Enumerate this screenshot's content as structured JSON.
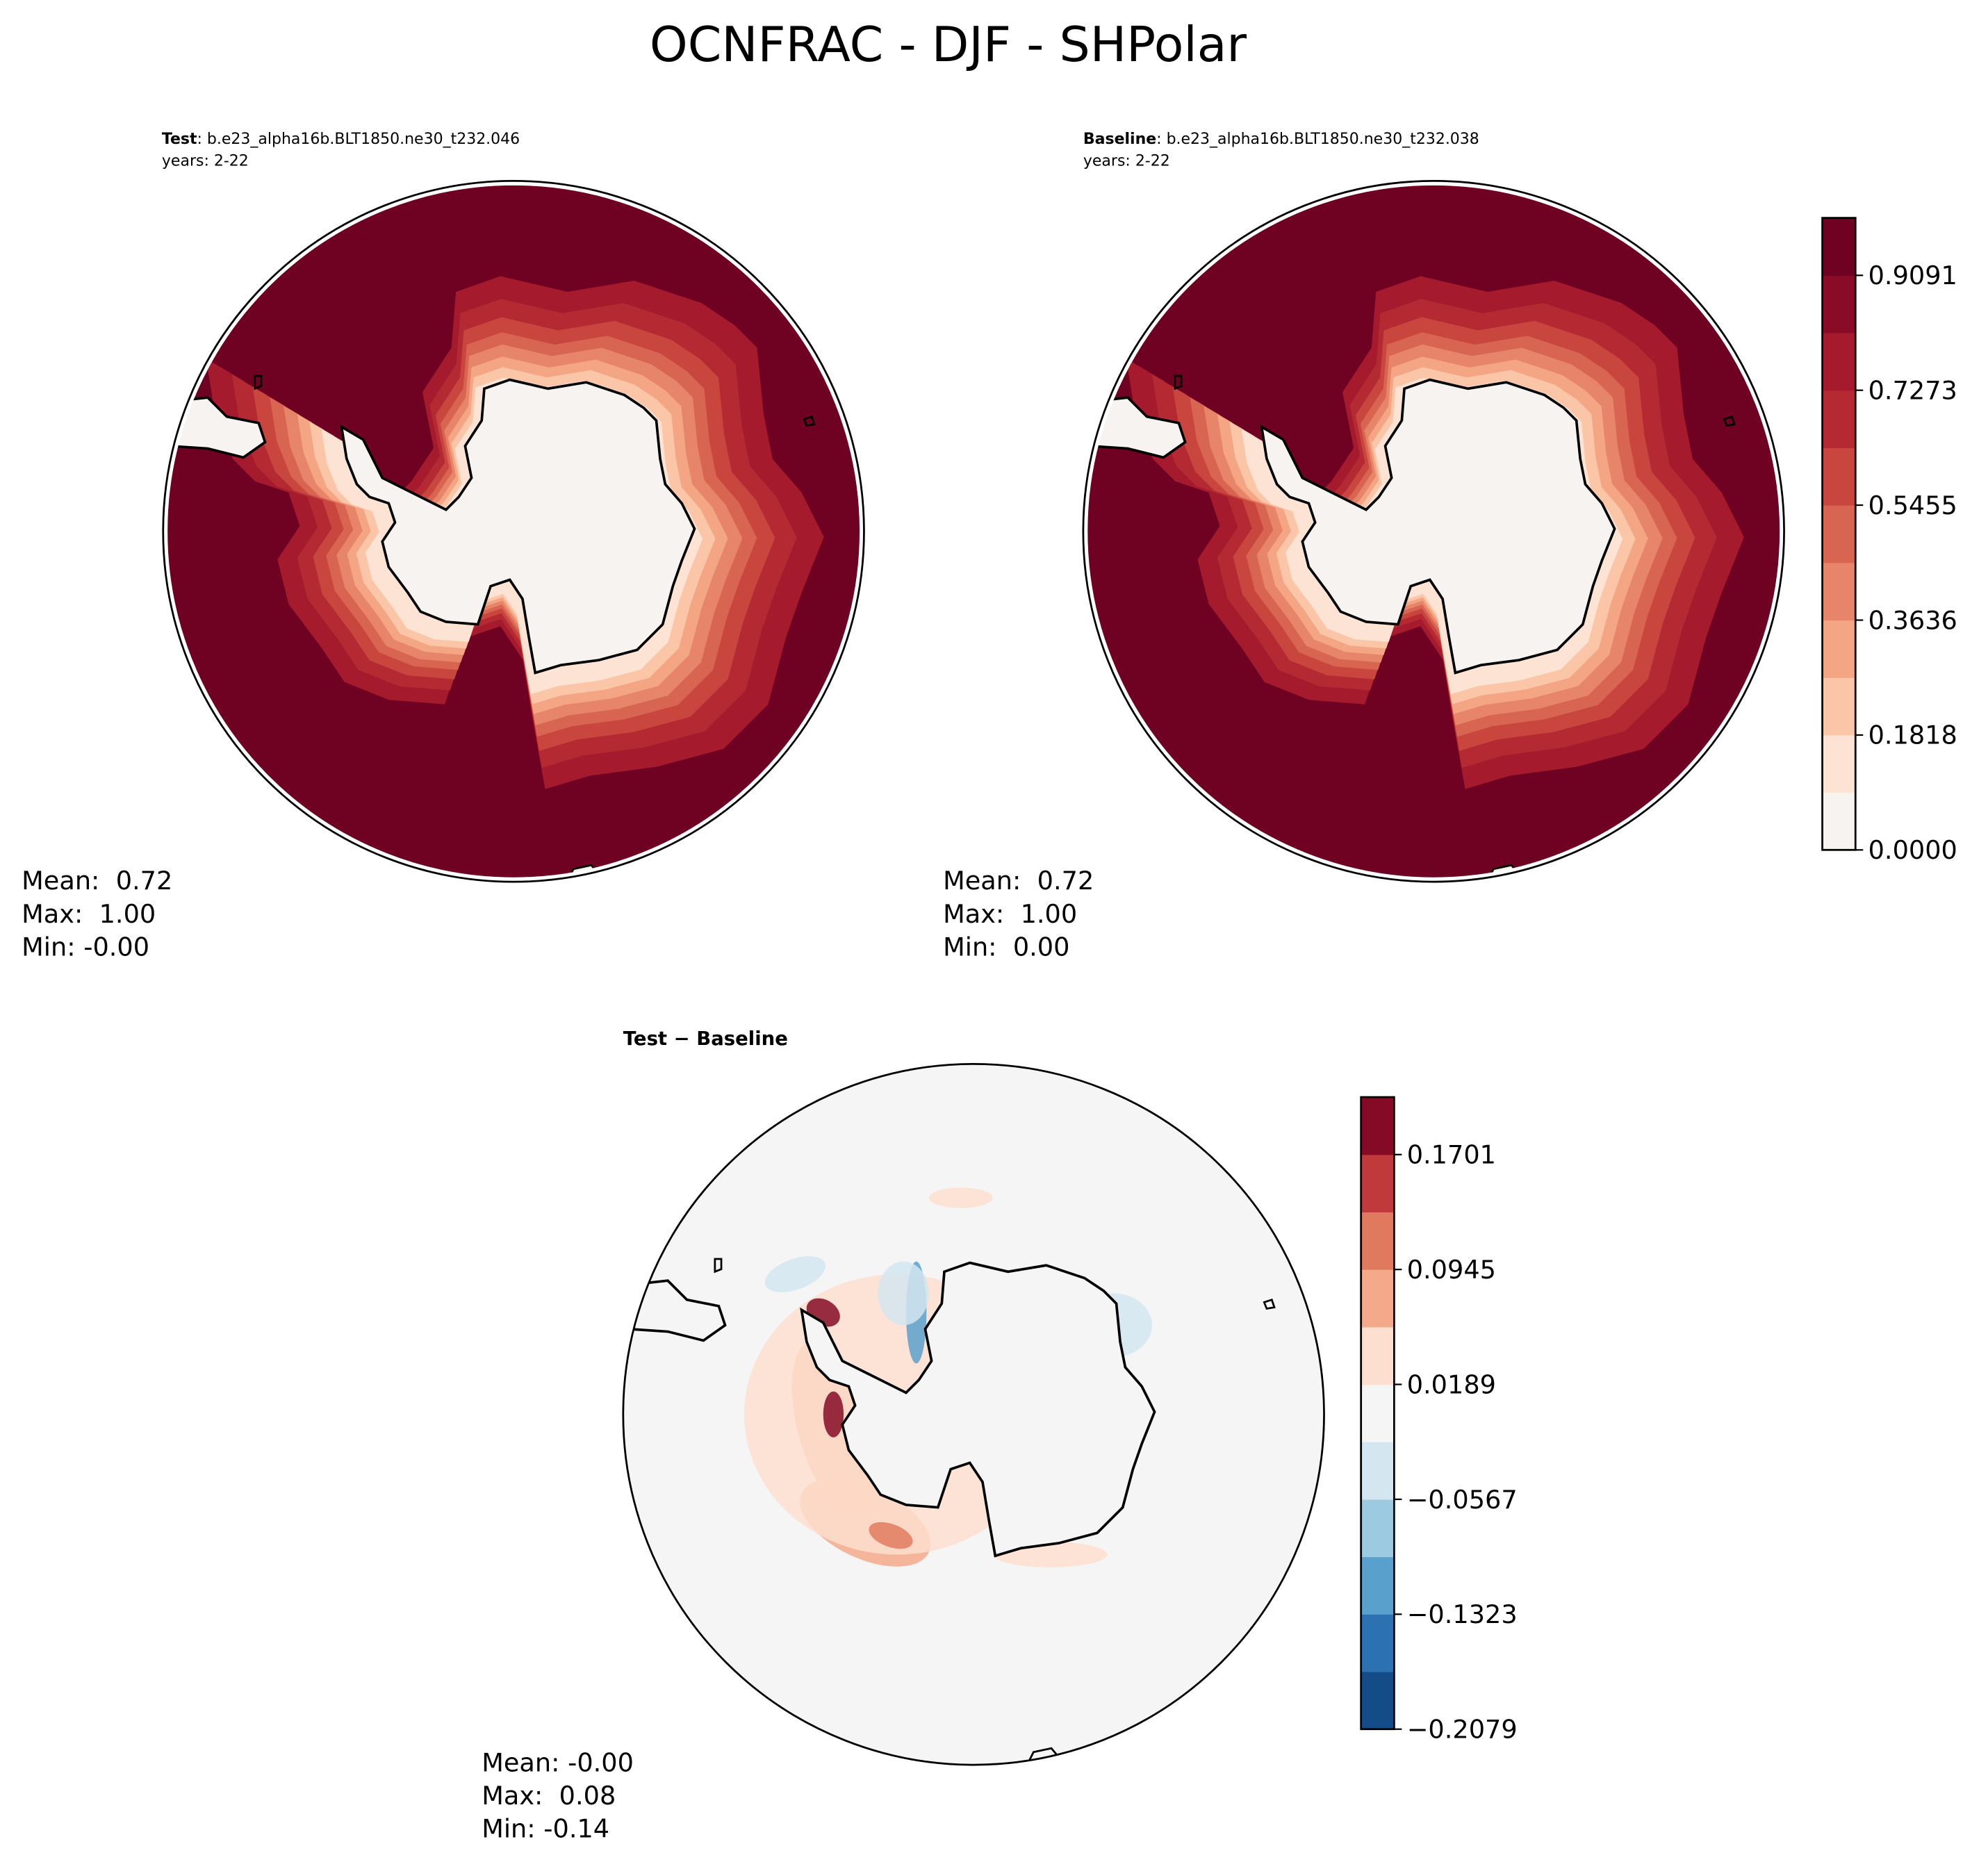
{
  "title": "OCNFRAC - DJF - SHPolar",
  "panels": [
    {
      "label": "Test",
      "case": ": b.e23_alpha16b.BLT1850.ne30_t232.046",
      "years": "years: 2-22",
      "stats": [
        "Mean:  0.72",
        "Max:  1.00",
        "Min: -0.00"
      ]
    },
    {
      "label": "Baseline",
      "case": ": b.e23_alpha16b.BLT1850.ne30_t232.038",
      "years": "years: 2-22",
      "stats": [
        "Mean:  0.72",
        "Max:  1.00",
        "Min:  0.00"
      ]
    },
    {
      "title": "Test − Baseline",
      "stats": [
        "Mean: -0.00",
        "Max:  0.08",
        "Min: -0.14"
      ]
    }
  ],
  "colorbars": [
    {
      "ylim": [
        0,
        1
      ],
      "ticks": [
        {
          "value": 0,
          "label": "0.0000"
        },
        0.1818,
        0.3636,
        0.5455,
        0.7273,
        0.9091
      ],
      "colors": [
        "#f7f3f0",
        "#fde3d4",
        "#fbc5a8",
        "#f4a583",
        "#e68569",
        "#d86452",
        "#c9463f",
        "#b52a32",
        "#a51a2c",
        "#8a0b25",
        "#6f0222"
      ]
    },
    {
      "ylim": [
        -0.2079,
        0.2079
      ],
      "ticks": [
        {
          "value": -0.2079,
          "label": "−0.2079"
        },
        {
          "value": -0.1323,
          "label": "−0.1323"
        },
        {
          "value": -0.0567,
          "label": "−0.0567"
        },
        0.0189,
        0.0945,
        0.1701
      ],
      "colors": [
        "#134c87",
        "#2c72b2",
        "#5aa0cd",
        "#9ccae1",
        "#d4e6f0",
        "#f5f5f5",
        "#fddfcf",
        "#f4a98a",
        "#e07a5f",
        "#c0393b",
        "#850a25"
      ]
    }
  ]
}
